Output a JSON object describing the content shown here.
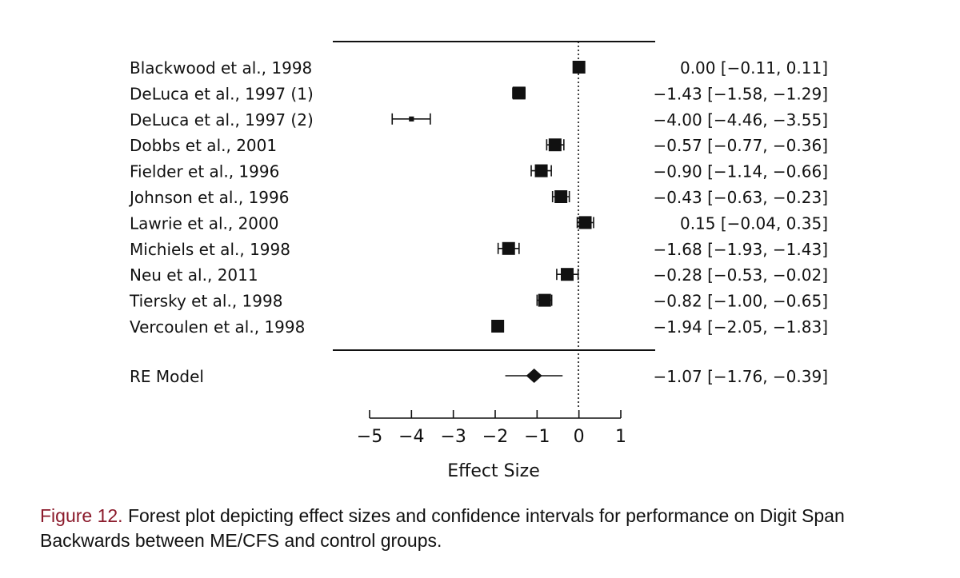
{
  "chart_data": {
    "type": "forest",
    "xlabel": "Effect Size",
    "xlim": [
      -5,
      1
    ],
    "xticks": [
      -5,
      -4,
      -3,
      -2,
      -1,
      0,
      1
    ],
    "xtick_labels": [
      "−5",
      "−4",
      "−3",
      "−2",
      "−1",
      "0",
      "1"
    ],
    "reference_line": 0,
    "studies": [
      {
        "label": "Blackwood et al., 1998",
        "estimate": 0.0,
        "lower": -0.11,
        "upper": 0.11,
        "text": "0.00 [−0.11, 0.11]",
        "weight": 1.0
      },
      {
        "label": "DeLuca et al., 1997 (1)",
        "estimate": -1.43,
        "lower": -1.58,
        "upper": -1.29,
        "text": "−1.43 [−1.58, −1.29]",
        "weight": 1.0
      },
      {
        "label": "DeLuca et al., 1997 (2)",
        "estimate": -4.0,
        "lower": -4.46,
        "upper": -3.55,
        "text": "−4.00 [−4.46, −3.55]",
        "weight": 0.15
      },
      {
        "label": "Dobbs et al., 2001",
        "estimate": -0.57,
        "lower": -0.77,
        "upper": -0.36,
        "text": "−0.57 [−0.77, −0.36]",
        "weight": 1.0
      },
      {
        "label": "Fielder et al., 1996",
        "estimate": -0.9,
        "lower": -1.14,
        "upper": -0.66,
        "text": "−0.90 [−1.14, −0.66]",
        "weight": 1.0
      },
      {
        "label": "Johnson et al., 1996",
        "estimate": -0.43,
        "lower": -0.63,
        "upper": -0.23,
        "text": "−0.43 [−0.63, −0.23]",
        "weight": 1.0
      },
      {
        "label": "Lawrie et al., 2000",
        "estimate": 0.15,
        "lower": -0.04,
        "upper": 0.35,
        "text": "0.15 [−0.04, 0.35]",
        "weight": 1.0
      },
      {
        "label": "Michiels et al., 1998",
        "estimate": -1.68,
        "lower": -1.93,
        "upper": -1.43,
        "text": "−1.68 [−1.93, −1.43]",
        "weight": 1.0
      },
      {
        "label": "Neu et al., 2011",
        "estimate": -0.28,
        "lower": -0.53,
        "upper": -0.02,
        "text": "−0.28 [−0.53, −0.02]",
        "weight": 1.0
      },
      {
        "label": "Tiersky et al., 1998",
        "estimate": -0.82,
        "lower": -1.0,
        "upper": -0.65,
        "text": "−0.82 [−1.00, −0.65]",
        "weight": 1.0
      },
      {
        "label": "Vercoulen et al., 1998",
        "estimate": -1.94,
        "lower": -2.05,
        "upper": -1.83,
        "text": "−1.94 [−2.05, −1.83]",
        "weight": 1.0
      }
    ],
    "summary": {
      "label": "RE Model",
      "estimate": -1.07,
      "lower": -1.76,
      "upper": -0.39,
      "text": "−1.07 [−1.76, −0.39]"
    }
  },
  "caption": {
    "label": "Figure 12.",
    "text": " Forest plot depicting effect sizes and confidence intervals for performance on Digit Span Backwards between ME/CFS and control groups."
  },
  "colors": {
    "ink": "#111111",
    "caption_label": "#8b1a2b"
  }
}
